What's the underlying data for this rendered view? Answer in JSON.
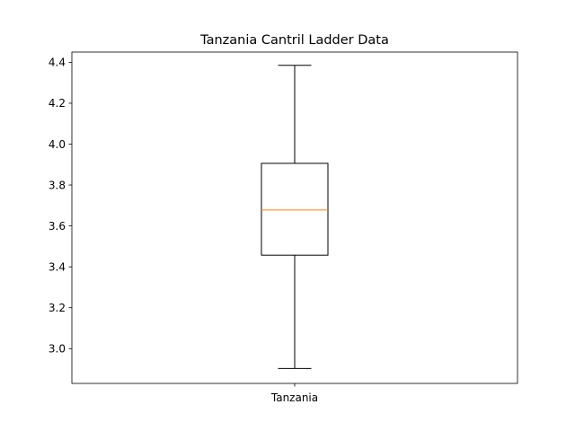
{
  "chart_data": {
    "type": "box",
    "title": "Tanzania Cantril Ladder Data",
    "xlabel": "",
    "ylabel": "",
    "categories": [
      "Tanzania"
    ],
    "boxes": [
      {
        "label": "Tanzania",
        "whisker_low": 2.903,
        "q1": 3.457,
        "median": 3.678,
        "q3": 3.906,
        "whisker_high": 4.385
      }
    ],
    "ylim": [
      2.83,
      4.45
    ],
    "yticks": [
      3.0,
      3.2,
      3.4,
      3.6,
      3.8,
      4.0,
      4.2,
      4.4
    ],
    "ytick_labels": [
      "3.0",
      "3.2",
      "3.4",
      "3.6",
      "3.8",
      "4.0",
      "4.2",
      "4.4"
    ],
    "grid": false,
    "colors": {
      "box": "#000000",
      "median": "#ff7f0e",
      "whisker": "#000000"
    }
  }
}
